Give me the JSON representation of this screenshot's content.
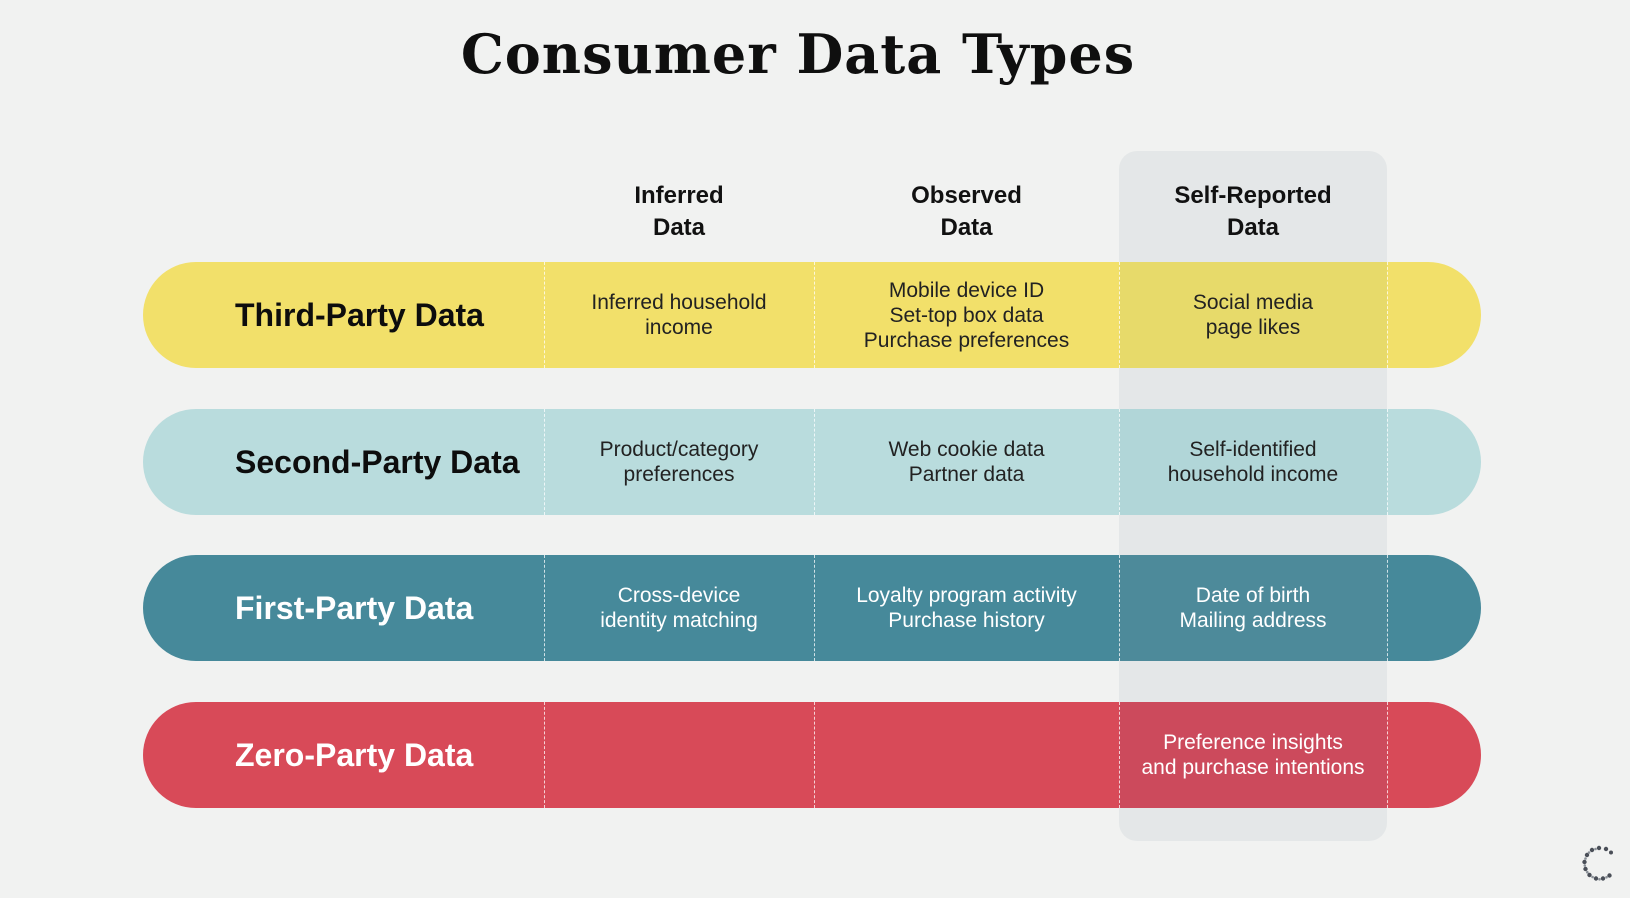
{
  "title": "Consumer Data Types",
  "columns": [
    {
      "line1": "Inferred",
      "line2": "Data"
    },
    {
      "line1": "Observed",
      "line2": "Data"
    },
    {
      "line1": "Self-Reported",
      "line2": "Data"
    }
  ],
  "rows": [
    {
      "label": "Third-Party Data",
      "color": "#f2e06a",
      "cells": [
        [
          "Inferred household",
          "income"
        ],
        [
          "Mobile device ID",
          "Set-top box data",
          "Purchase preferences"
        ],
        [
          "Social media",
          "page likes"
        ]
      ]
    },
    {
      "label": "Second-Party Data",
      "color": "#b9dcdd",
      "cells": [
        [
          "Product/category",
          "preferences"
        ],
        [
          "Web cookie data",
          "Partner data"
        ],
        [
          "Self-identified",
          "household income"
        ]
      ]
    },
    {
      "label": "First-Party Data",
      "color": "#46899a",
      "cells": [
        [
          "Cross-device",
          "identity matching"
        ],
        [
          "Loyalty program activity",
          "Purchase history"
        ],
        [
          "Date of birth",
          "Mailing address"
        ]
      ]
    },
    {
      "label": "Zero-Party Data",
      "color": "#d84a58",
      "cells": [
        [],
        [],
        [
          "Preference insights",
          "and purchase intentions"
        ]
      ]
    }
  ],
  "icons": {
    "logo": "wreath-c-logo-icon"
  }
}
